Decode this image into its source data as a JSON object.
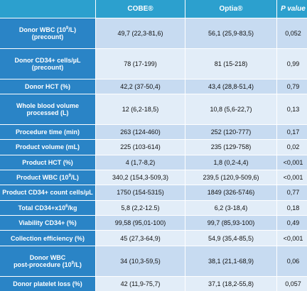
{
  "header": {
    "col1": "",
    "col2": "COBE®",
    "col3": "Optia®",
    "col4": "P value"
  },
  "rows": [
    {
      "label_l1": "Donor WBC (10",
      "label_sup": "9",
      "label_l1b": "/L)",
      "label_l2": "(precount)",
      "cobe": "49,7 (22,3-81,6)",
      "optia": "56,1 (25,9-83,5)",
      "p": "0,052"
    },
    {
      "label_l1": "Donor CD34+ cells/µL",
      "label_l2": "(precount)",
      "cobe": "78 (17-199)",
      "optia": "81 (15-218)",
      "p": "0,99"
    },
    {
      "label_l1": "Donor HCT (%)",
      "cobe": "42,2 (37-50,4)",
      "optia": "43,4 (28,8-51,4)",
      "p": "0,79"
    },
    {
      "label_l1": "Whole blood volume",
      "label_l2": "processed (L)",
      "cobe": "12 (6,2-18,5)",
      "optia": "10,8 (5,6-22,7)",
      "p": "0,13"
    },
    {
      "label_l1": "Procedure time (min)",
      "cobe": "263 (124-460)",
      "optia": "252 (120-777)",
      "p": "0,17"
    },
    {
      "label_l1": "Product volume (mL)",
      "cobe": "225 (103-614)",
      "optia": "235 (129-758)",
      "p": "0,02"
    },
    {
      "label_l1": "Product HCT (%)",
      "cobe": "4 (1,7-8,2)",
      "optia": "1,8 (0,2-4,4)",
      "p": "<0,001"
    },
    {
      "label_l1": "Product WBC (10",
      "label_sup": "9",
      "label_l1b": "/L)",
      "cobe": "340,2 (154,3-509,3)",
      "optia": "239,5 (120,9-509,6)",
      "p": "<0,001"
    },
    {
      "label_l1": "Product CD34+ count cells/µL",
      "cobe": "1750 (154-5315)",
      "optia": "1849 (326-5746)",
      "p": "0,77"
    },
    {
      "label_l1": "Total CD34+x10",
      "label_sup": "6",
      "label_l1b": "/kg",
      "cobe": "5,8 (2,2-12.5)",
      "optia": "6,2 (3-18,4)",
      "p": "0,18"
    },
    {
      "label_l1": "Viability CD34+ (%)",
      "cobe": "99,58 (95,01-100)",
      "optia": "99,7 (85,93-100)",
      "p": "0,49"
    },
    {
      "label_l1": "Collection efficiency  (%)",
      "cobe": "45 (27,3-64,9)",
      "optia": "54,9 (35,4-85,5)",
      "p": "<0,001"
    },
    {
      "label_l1": "Donor WBC",
      "label_l2a": "post-procedure (10",
      "label_sup2": "9",
      "label_l2b": "/L)",
      "cobe": "34 (10,3-59,5)",
      "optia": "38,1 (21,1-68,9)",
      "p": "0,06"
    },
    {
      "label_l1": "Donor platelet loss (%)",
      "cobe": "42 (11,9-75,7)",
      "optia": "37,1 (18,2-55,8)",
      "p": "0,057"
    }
  ]
}
